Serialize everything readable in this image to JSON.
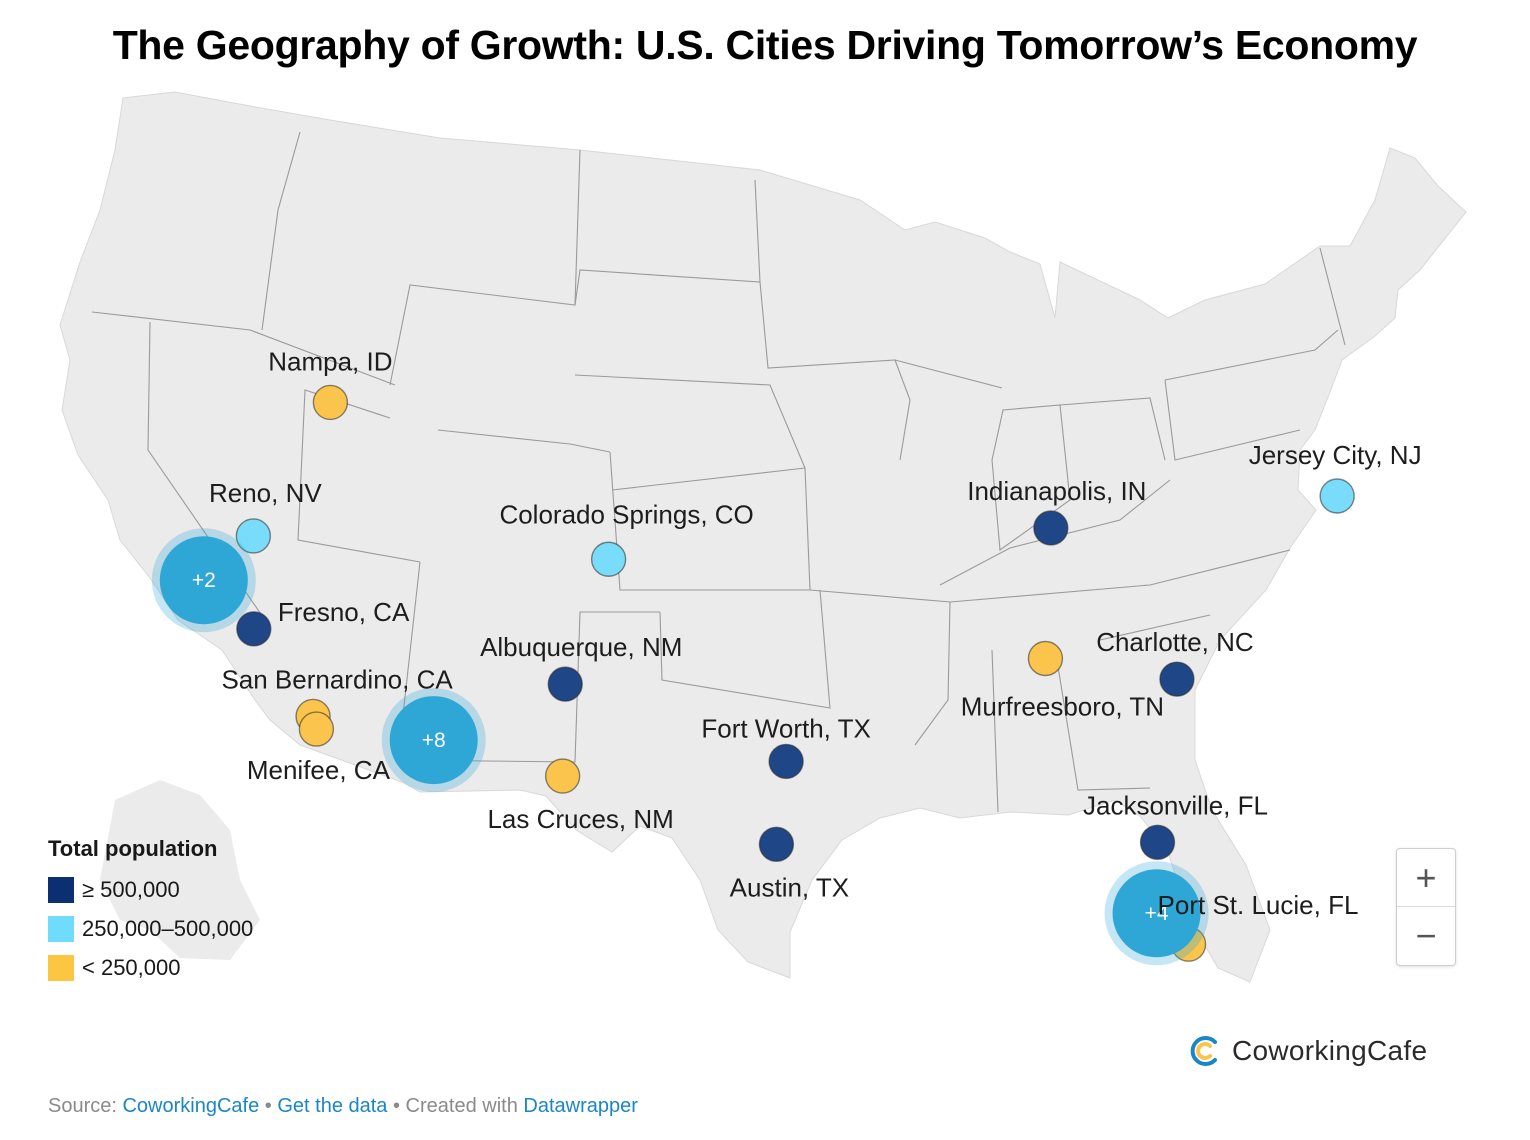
{
  "title": "The Geography of Growth: U.S. Cities Driving Tomorrow’s Economy",
  "colors": {
    "large": "#1f4686",
    "medium": "#79dcfb",
    "small": "#fbc54d",
    "cluster": "#2fa7d6",
    "land": "#ebebeb",
    "border": "#9a9a9a"
  },
  "cities": [
    {
      "name": "Nampa, ID",
      "lat": 43.54,
      "lon": -116.56,
      "category": "small"
    },
    {
      "name": "Reno, NV",
      "lat": 39.53,
      "lon": -119.81,
      "category": "medium"
    },
    {
      "name": "Fresno, CA",
      "lat": 36.74,
      "lon": -119.79,
      "category": "large"
    },
    {
      "name": "San Bernardino, CA",
      "lat": 34.11,
      "lon": -117.29,
      "category": "small"
    },
    {
      "name": "Menifee, CA",
      "lat": 33.73,
      "lon": -117.15,
      "category": "small"
    },
    {
      "name": "Colorado Springs, CO",
      "lat": 38.83,
      "lon": -104.82,
      "category": "medium"
    },
    {
      "name": "Albuquerque, NM",
      "lat": 35.08,
      "lon": -106.65,
      "category": "large"
    },
    {
      "name": "Las Cruces, NM",
      "lat": 32.32,
      "lon": -106.76,
      "category": "small"
    },
    {
      "name": "Fort Worth, TX",
      "lat": 32.76,
      "lon": -97.33,
      "category": "large"
    },
    {
      "name": "Austin, TX",
      "lat": 30.27,
      "lon": -97.74,
      "category": "large"
    },
    {
      "name": "Indianapolis, IN",
      "lat": 39.77,
      "lon": -86.16,
      "category": "large"
    },
    {
      "name": "Murfreesboro, TN",
      "lat": 35.85,
      "lon": -86.39,
      "category": "small"
    },
    {
      "name": "Charlotte, NC",
      "lat": 35.23,
      "lon": -80.84,
      "category": "large"
    },
    {
      "name": "Jacksonville, FL",
      "lat": 30.33,
      "lon": -81.66,
      "category": "large"
    },
    {
      "name": "Port St. Lucie, FL",
      "lat": 27.27,
      "lon": -80.35,
      "category": "small"
    },
    {
      "name": "Jersey City, NJ",
      "lat": 40.73,
      "lon": -74.08,
      "category": "medium"
    }
  ],
  "clusters": [
    {
      "label": "+2",
      "lat": 38.2,
      "lon": -121.9
    },
    {
      "label": "+8",
      "lat": 33.4,
      "lon": -112.2
    },
    {
      "label": "+4",
      "lat": 28.2,
      "lon": -81.7
    }
  ],
  "legend": {
    "title": "Total population",
    "items": [
      {
        "label": "≥ 500,000",
        "category": "large"
      },
      {
        "label": "250,000–500,000",
        "category": "medium"
      },
      {
        "label": "< 250,000",
        "category": "small"
      }
    ]
  },
  "zoom": {
    "in_label": "+",
    "out_label": "−"
  },
  "logo": {
    "name": "CoworkingCafe"
  },
  "footer": {
    "source_prefix": "Source: ",
    "source_link": "CoworkingCafe",
    "separator1": " • ",
    "data_link": "Get the data",
    "separator2": " • Created with ",
    "tool_link": "Datawrapper"
  }
}
